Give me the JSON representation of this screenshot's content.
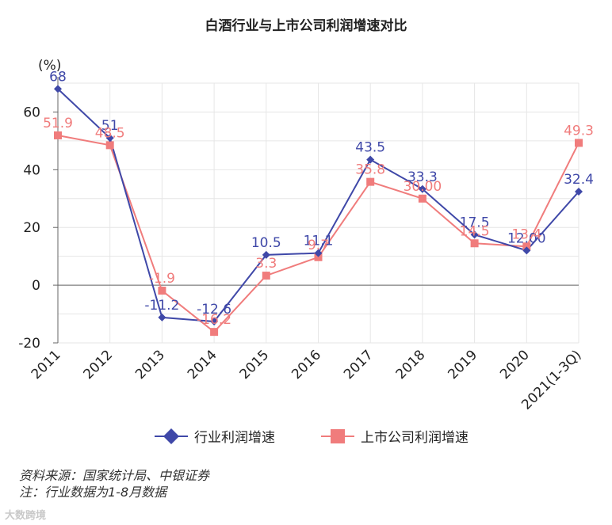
{
  "chart_data": {
    "type": "line",
    "title": "白酒行业与上市公司利润增速对比",
    "ylabel": "(%)",
    "categories": [
      "2011",
      "2012",
      "2013",
      "2014",
      "2015",
      "2016",
      "2017",
      "2018",
      "2019",
      "2020",
      "2021(1-3Q)"
    ],
    "ylim": [
      -20,
      70
    ],
    "yticks": [
      -20,
      0,
      20,
      40,
      60
    ],
    "grid": true,
    "legend_position": "bottom",
    "series": [
      {
        "name": "行业利润增速",
        "color": "#3f48a8",
        "marker": "diamond",
        "values": [
          68,
          51,
          -11.2,
          -12.6,
          10.5,
          11.1,
          43.5,
          33.3,
          17.5,
          12.0,
          32.4
        ],
        "labels": [
          "68",
          "51",
          "-11.2",
          "-12.6",
          "10.5",
          "11.1",
          "43.5",
          "33.3",
          "17.5",
          "12.00",
          "32.4"
        ]
      },
      {
        "name": "上市公司利润增速",
        "color": "#f07c7c",
        "marker": "square",
        "values": [
          51.9,
          48.5,
          -1.9,
          -16.2,
          3.3,
          9.7,
          35.8,
          30.0,
          14.5,
          13.4,
          49.3
        ],
        "labels": [
          "51.9",
          "48.5",
          "-1.9",
          "-16.2",
          "3.3",
          "9.7",
          "35.8",
          "30.00",
          "14.5",
          "13.4",
          "49.3"
        ]
      }
    ]
  },
  "footnotes": {
    "source": "资料来源：国家统计局、中银证券",
    "note": "注：行业数据为1-8月数据"
  },
  "watermark": "大数跨境"
}
